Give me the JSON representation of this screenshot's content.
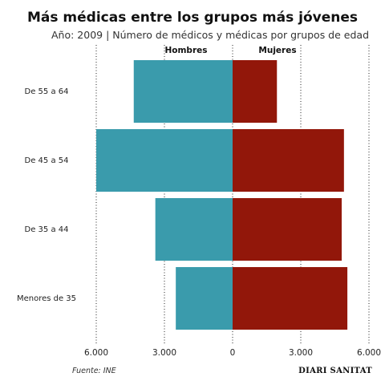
{
  "chart_data": {
    "type": "bar",
    "orientation": "horizontal-diverging",
    "title": "Más médicas entre los grupos más jóvenes",
    "subtitle": "Año: 2009 | Número de médicos y médicas por grupos de edad",
    "categories": [
      "De 55 a 64",
      "De 45 a 54",
      "De 35 a 44",
      "Menores de 35"
    ],
    "series": [
      {
        "name": "Hombres",
        "values": [
          4350,
          6000,
          3400,
          2500
        ],
        "color": "#3a9bac",
        "side": "left"
      },
      {
        "name": "Mujeres",
        "values": [
          1950,
          4900,
          4800,
          5050
        ],
        "color": "#92170a",
        "side": "right"
      }
    ],
    "xlim": [
      -6000,
      6000
    ],
    "ticks": [
      "6.000",
      "3.000",
      "0",
      "3.000",
      "6.000"
    ],
    "tick_values": [
      -6000,
      -3000,
      0,
      3000,
      6000
    ],
    "grid": true,
    "source": "Fuente: INE",
    "brand": "DIARI SANITAT"
  }
}
